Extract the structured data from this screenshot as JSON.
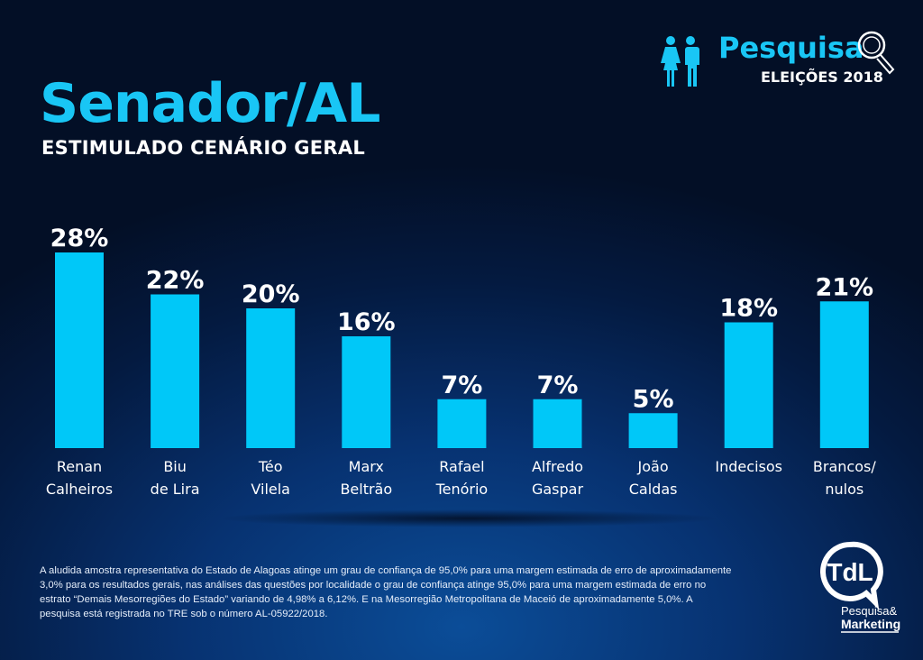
{
  "header": {
    "title": "Senador/AL",
    "subtitle": "ESTIMULADO CENÁRIO GERAL"
  },
  "logo": {
    "name": "Pesquisa",
    "tagline": "ELEIÇÕES 2018",
    "icons": [
      "people-icon",
      "magnifier-icon"
    ]
  },
  "chart_data": {
    "type": "bar",
    "title": "Senador/AL",
    "subtitle": "ESTIMULADO CENÁRIO GERAL",
    "categories": [
      [
        "Renan",
        "Calheiros"
      ],
      [
        "Biu",
        "de Lira"
      ],
      [
        "Téo",
        "Vilela"
      ],
      [
        "Marx",
        "Beltrão"
      ],
      [
        "Rafael",
        "Tenório"
      ],
      [
        "Alfredo",
        "Gaspar"
      ],
      [
        "João",
        "Caldas"
      ],
      [
        "Indecisos"
      ],
      [
        "Brancos/",
        "nulos"
      ]
    ],
    "values": [
      28,
      22,
      20,
      16,
      7,
      7,
      5,
      18,
      21
    ],
    "labels": [
      "28%",
      "22%",
      "20%",
      "16%",
      "7%",
      "7%",
      "5%",
      "18%",
      "21%"
    ],
    "unit": "%",
    "ylim": [
      0,
      30
    ],
    "grid": false,
    "bar_color": "#00c8f8"
  },
  "footnote": "A aludida  amostra representativa do Estado de Alagoas  atinge um grau de confiança de 95,0% para uma margem estimada de erro de aproximadamente 3,0% para os resultados gerais, nas análises das questões por localidade o grau de confiança atinge 95,0% para uma margem estimada de erro no estrato “Demais Mesorregiões do Estado” variando de  4,98%  a 6,12%. E  na Mesorregião Metropolitana de Maceió  de aproximadamente 5,0%. A pesquisa está registrada no TRE sob o número AL-05922/2018.",
  "brand": {
    "mark": "TdL",
    "line1": "Pesquisa&",
    "line2": "Marketing"
  }
}
